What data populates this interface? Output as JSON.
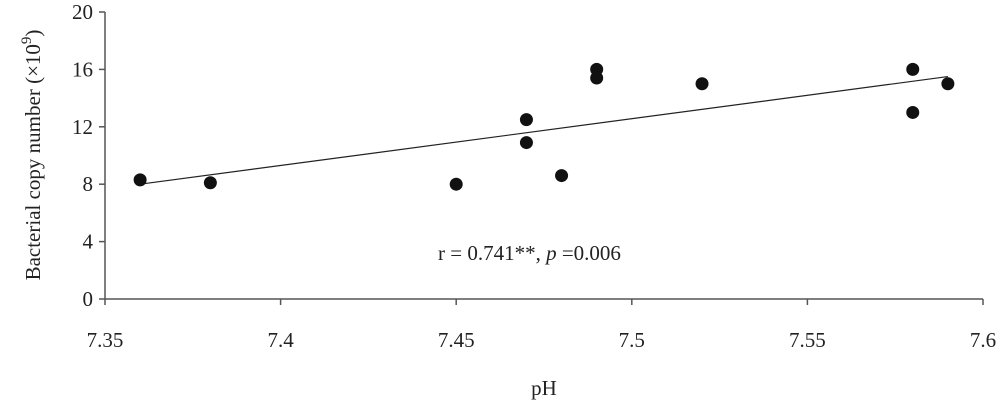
{
  "chart_data": {
    "type": "scatter",
    "xlabel": "pH",
    "ylabel": "Bacterial copy number (×10",
    "ylabel_exponent": "9",
    "ylabel_close": ")",
    "xlim": [
      7.35,
      7.6
    ],
    "ylim": [
      0,
      20
    ],
    "x_ticks": [
      7.35,
      7.4,
      7.45,
      7.5,
      7.55,
      7.6
    ],
    "x_tick_labels": [
      "7.35",
      "7.4",
      "7.45",
      "7.5",
      "7.55",
      "7.6"
    ],
    "y_ticks": [
      0,
      4,
      8,
      12,
      16,
      20
    ],
    "y_tick_labels": [
      "0",
      "4",
      "8",
      "12",
      "16",
      "20"
    ],
    "grid": false,
    "points": [
      {
        "x": 7.36,
        "y": 8.3
      },
      {
        "x": 7.38,
        "y": 8.1
      },
      {
        "x": 7.45,
        "y": 8.0
      },
      {
        "x": 7.47,
        "y": 12.5
      },
      {
        "x": 7.47,
        "y": 10.9
      },
      {
        "x": 7.48,
        "y": 8.6
      },
      {
        "x": 7.49,
        "y": 16.0
      },
      {
        "x": 7.49,
        "y": 15.4
      },
      {
        "x": 7.52,
        "y": 15.0
      },
      {
        "x": 7.58,
        "y": 16.0
      },
      {
        "x": 7.58,
        "y": 13.0
      },
      {
        "x": 7.59,
        "y": 15.0
      }
    ],
    "trendline": {
      "x": [
        7.36,
        7.59
      ],
      "y": [
        8.0,
        15.5
      ]
    },
    "annotation": {
      "prefix": "r = 0.741**, ",
      "italic": "p",
      "suffix": " =0.006"
    }
  }
}
